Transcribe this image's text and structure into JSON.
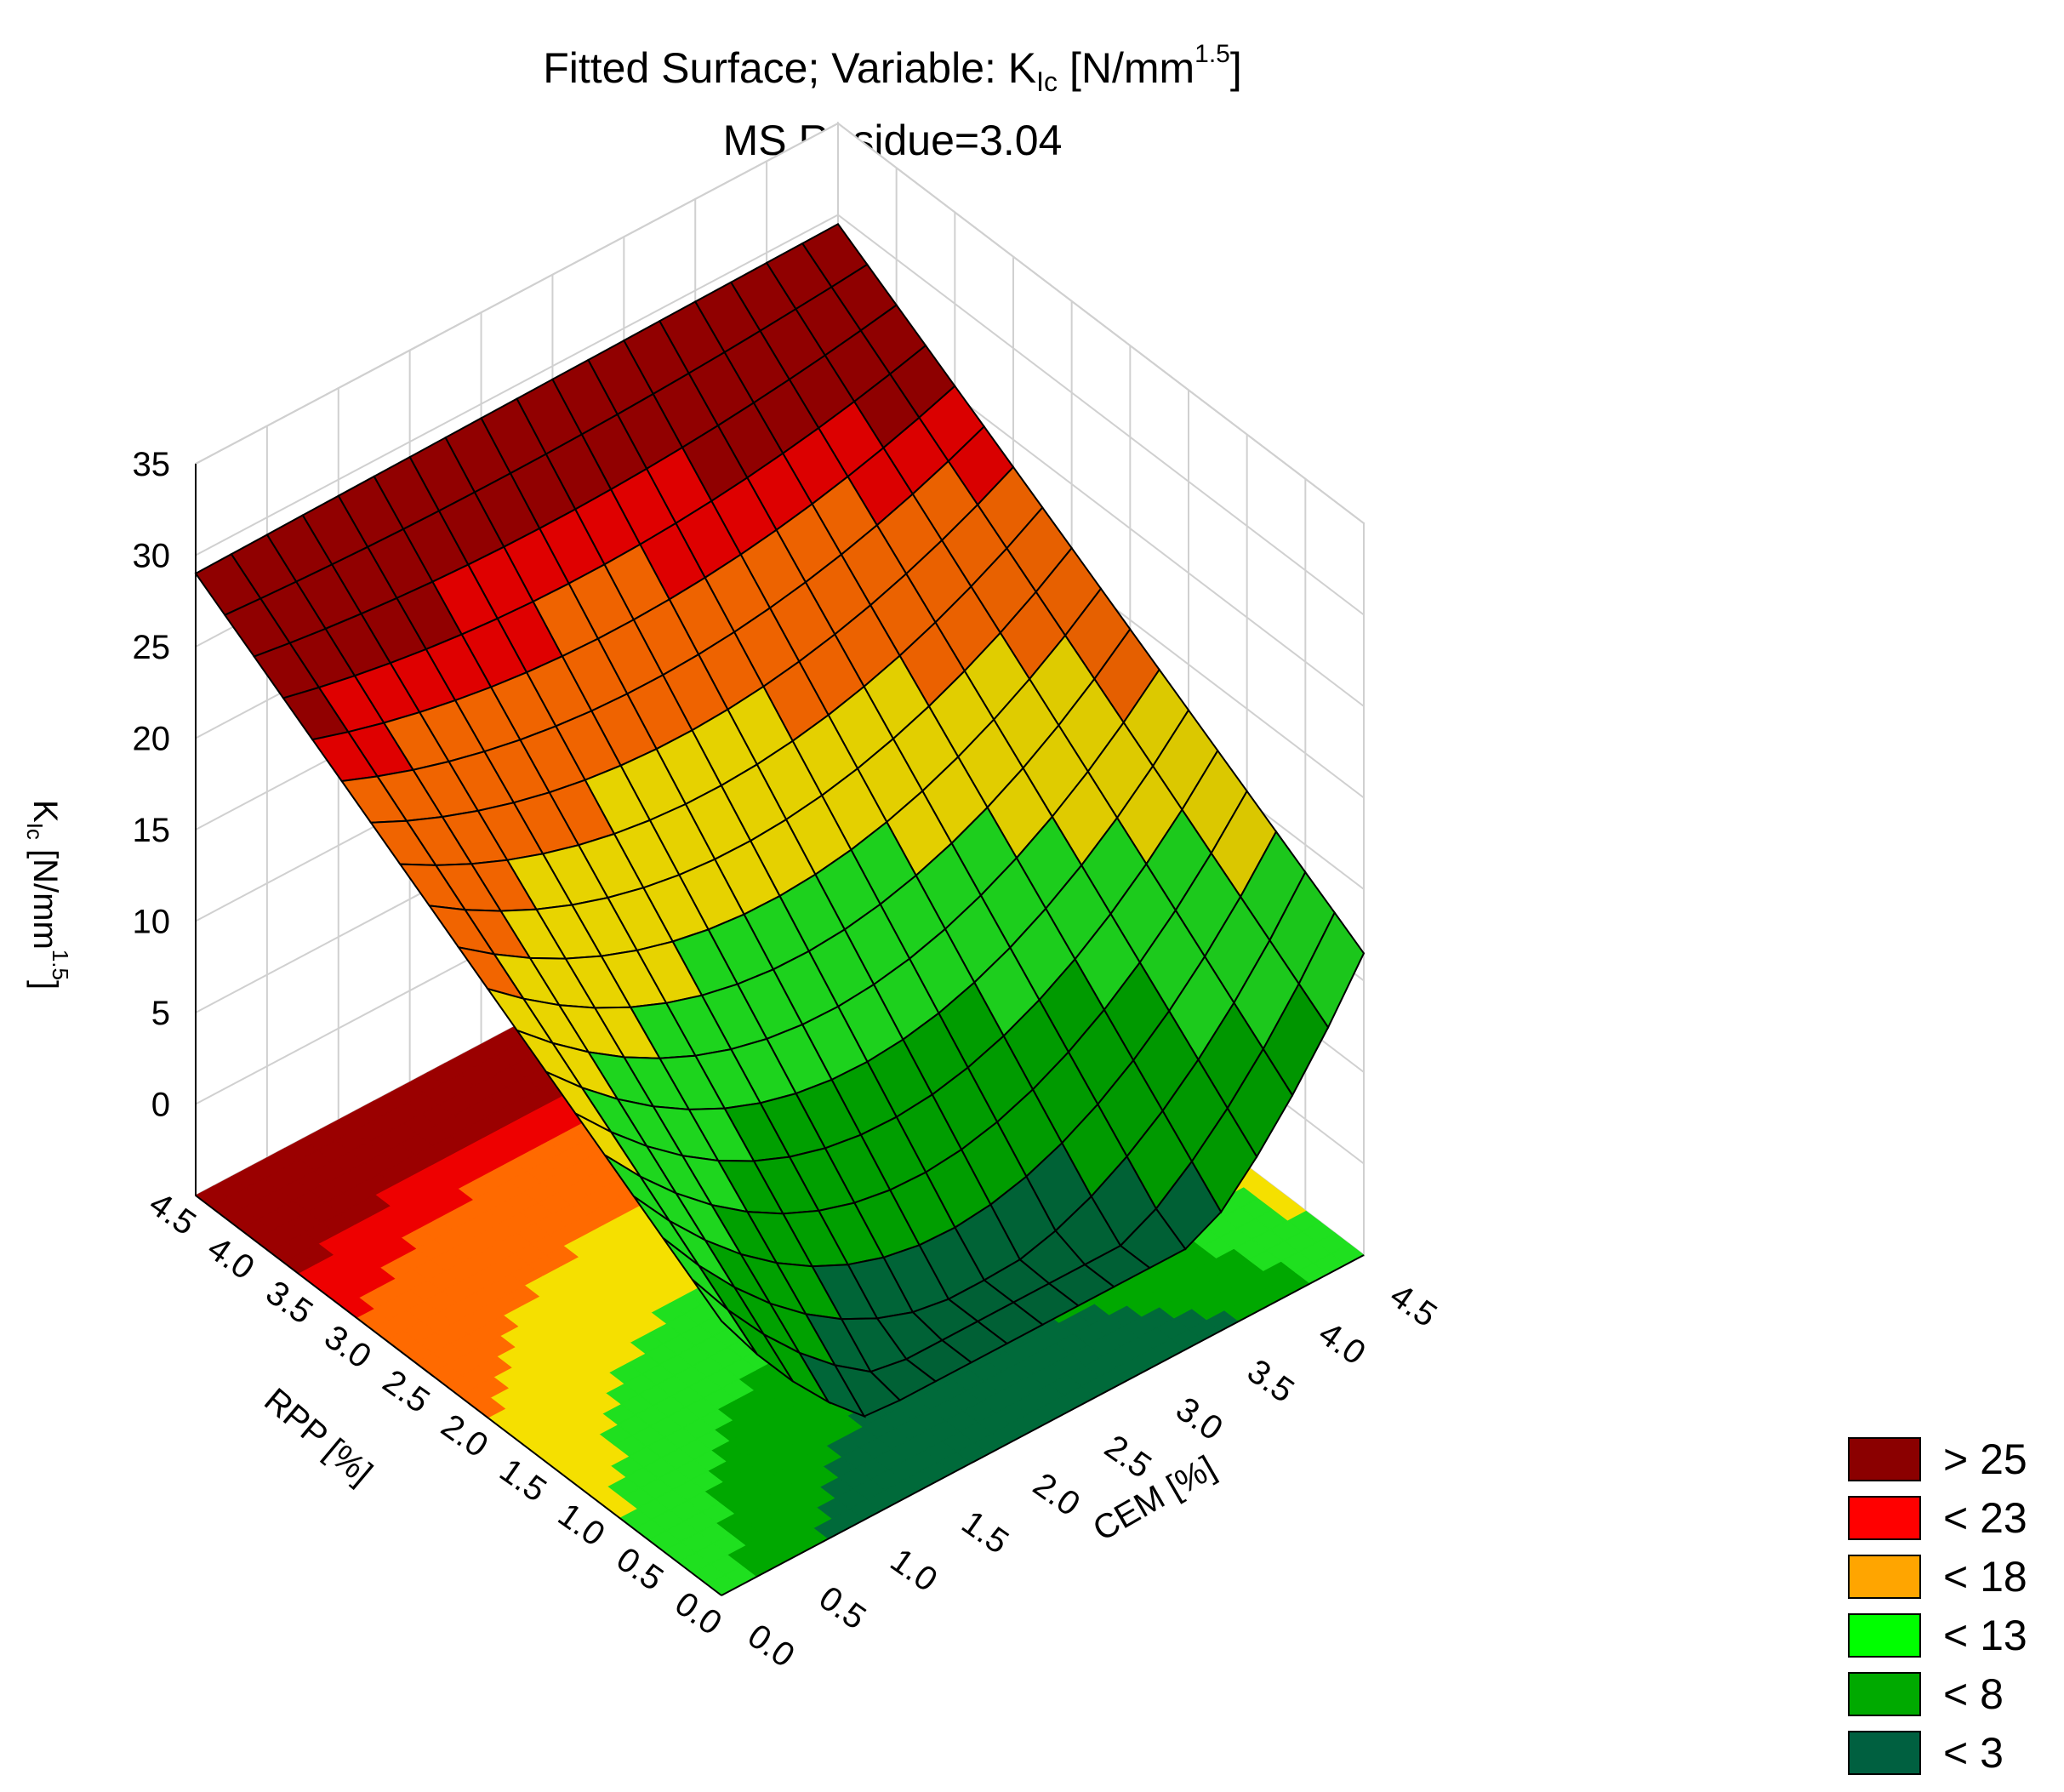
{
  "title": {
    "line1_prefix": "Fitted Surface; Variable: K",
    "line1_sub": "Ic",
    "line1_mid": " [N/mm",
    "line1_sup": "1.5",
    "line1_end": "]",
    "line2": "MS Residue=3.04"
  },
  "legend": [
    {
      "label": "> 25",
      "color": "#8b0000"
    },
    {
      "label": "< 23",
      "color": "#ff0000"
    },
    {
      "label": "< 18",
      "color": "#ffa500"
    },
    {
      "label": "< 13",
      "color": "#00ff00"
    },
    {
      "label": "< 8",
      "color": "#00aa00"
    },
    {
      "label": "< 3",
      "color": "#006040"
    }
  ],
  "chart_data": {
    "type": "surface",
    "title": "Fitted Surface; Variable: KIc [N/mm1.5]",
    "subtitle": "MS Residue=3.04",
    "xlabel": "CEM [%]",
    "ylabel": "RPP [%]",
    "zlabel_main": "K",
    "zlabel_sub": "Ic",
    "zlabel_rest": " [N/mm",
    "zlabel_sup": "1.5",
    "zlabel_end": "]",
    "xlim": [
      0,
      4.5
    ],
    "ylim": [
      0,
      4.5
    ],
    "zlim": [
      -5,
      35
    ],
    "x_ticks": [
      "0.0",
      "0.5",
      "1.0",
      "1.5",
      "2.0",
      "2.5",
      "3.0",
      "3.5",
      "4.0",
      "4.5"
    ],
    "y_ticks": [
      "0.0",
      "0.5",
      "1.0",
      "1.5",
      "2.0",
      "2.5",
      "3.0",
      "3.5",
      "4.0",
      "4.5"
    ],
    "z_ticks": [
      "0",
      "5",
      "10",
      "15",
      "20",
      "25",
      "30",
      "35"
    ],
    "surface_corners": [
      {
        "cem": 0.0,
        "rpp": 0.0,
        "k": 10
      },
      {
        "cem": 4.5,
        "rpp": 0.0,
        "k": 11.5
      },
      {
        "cem": 0.0,
        "rpp": 4.5,
        "k": 29
      },
      {
        "cem": 4.5,
        "rpp": 4.5,
        "k": 29.5
      }
    ],
    "surface_minimum": {
      "cem": 2.6,
      "rpp": 0.9,
      "k": 0.5
    },
    "grid_on": true,
    "legend_position": "bottom-right"
  }
}
